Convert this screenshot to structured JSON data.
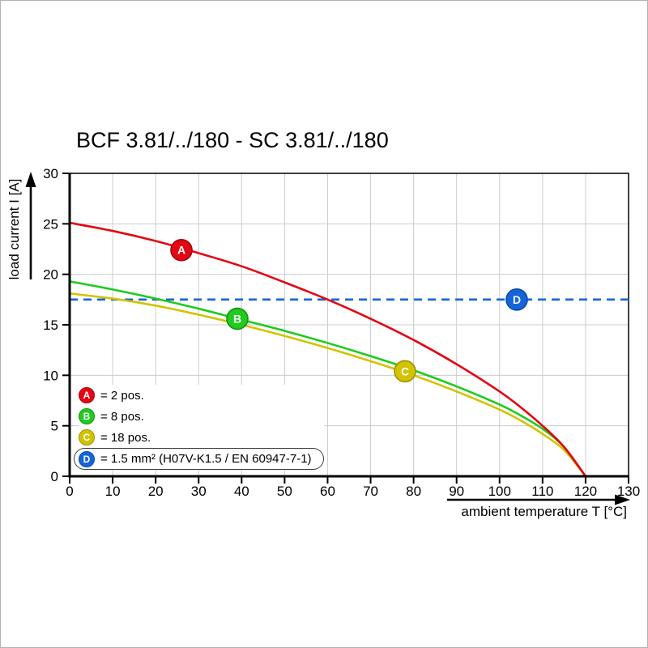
{
  "chart_data": {
    "type": "line",
    "title": "BCF 3.81/../180 - SC 3.81/../180",
    "xlabel": "ambient temperature T [°C]",
    "ylabel": "load current I [A]",
    "xlim": [
      0,
      130
    ],
    "ylim": [
      0,
      30
    ],
    "xtick_step": 10,
    "ytick_step": 5,
    "grid": true,
    "legend_position": "lower-left",
    "series": [
      {
        "id": "A",
        "name": "2 pos.",
        "color": "#e30613",
        "border_color": "#a50410",
        "line_style": "solid",
        "points": [
          [
            0,
            25.1
          ],
          [
            10,
            24.3
          ],
          [
            20,
            23.3
          ],
          [
            30,
            22.1
          ],
          [
            40,
            20.8
          ],
          [
            50,
            19.2
          ],
          [
            60,
            17.5
          ],
          [
            70,
            15.6
          ],
          [
            80,
            13.5
          ],
          [
            90,
            11.1
          ],
          [
            100,
            8.4
          ],
          [
            105,
            6.8
          ],
          [
            110,
            5.0
          ],
          [
            115,
            2.9
          ],
          [
            120,
            0
          ]
        ],
        "marker": {
          "x": 26,
          "y": 22.4,
          "letter": "A"
        }
      },
      {
        "id": "B",
        "name": "8 pos.",
        "color": "#1ecb1e",
        "border_color": "#149210",
        "line_style": "solid",
        "points": [
          [
            0,
            19.3
          ],
          [
            10,
            18.5
          ],
          [
            20,
            17.6
          ],
          [
            30,
            16.6
          ],
          [
            40,
            15.5
          ],
          [
            50,
            14.4
          ],
          [
            60,
            13.2
          ],
          [
            70,
            11.9
          ],
          [
            80,
            10.5
          ],
          [
            90,
            8.9
          ],
          [
            100,
            7.1
          ],
          [
            105,
            6.0
          ],
          [
            110,
            4.7
          ],
          [
            115,
            2.9
          ],
          [
            120,
            0
          ]
        ],
        "marker": {
          "x": 39,
          "y": 15.6,
          "letter": "B"
        }
      },
      {
        "id": "C",
        "name": "18 pos.",
        "color": "#d2c300",
        "border_color": "#9c9100",
        "line_style": "solid",
        "points": [
          [
            0,
            18.1
          ],
          [
            10,
            17.6
          ],
          [
            20,
            16.9
          ],
          [
            30,
            16.0
          ],
          [
            40,
            15.0
          ],
          [
            50,
            13.9
          ],
          [
            60,
            12.7
          ],
          [
            70,
            11.4
          ],
          [
            80,
            10.0
          ],
          [
            90,
            8.4
          ],
          [
            100,
            6.6
          ],
          [
            105,
            5.5
          ],
          [
            110,
            4.2
          ],
          [
            115,
            2.6
          ],
          [
            120,
            0
          ]
        ],
        "marker": {
          "x": 78,
          "y": 10.4,
          "letter": "C"
        }
      },
      {
        "id": "D",
        "name": "1.5 mm² (H07V-K1.5 / EN 60947-7-1)",
        "color": "#1565d8",
        "border_color": "#0b4aa2",
        "line_style": "dashed",
        "points": [
          [
            0,
            17.5
          ],
          [
            130,
            17.5
          ]
        ],
        "marker": {
          "x": 104,
          "y": 17.5,
          "letter": "D"
        }
      }
    ]
  },
  "legend": {
    "items": [
      {
        "letter": "A",
        "label": "= 2 pos.",
        "color": "#e30613",
        "border": "#a50410"
      },
      {
        "letter": "B",
        "label": "= 8 pos.",
        "color": "#1ecb1e",
        "border": "#149210"
      },
      {
        "letter": "C",
        "label": "= 18 pos.",
        "color": "#d2c300",
        "border": "#9c9100"
      },
      {
        "letter": "D",
        "label": "= 1.5 mm² (H07V-K1.5 / EN 60947-7-1)",
        "color": "#1565d8",
        "border": "#0b4aa2"
      }
    ]
  },
  "colors": {
    "grid": "#cccccc",
    "axis": "#000000",
    "background": "#ffffff"
  }
}
